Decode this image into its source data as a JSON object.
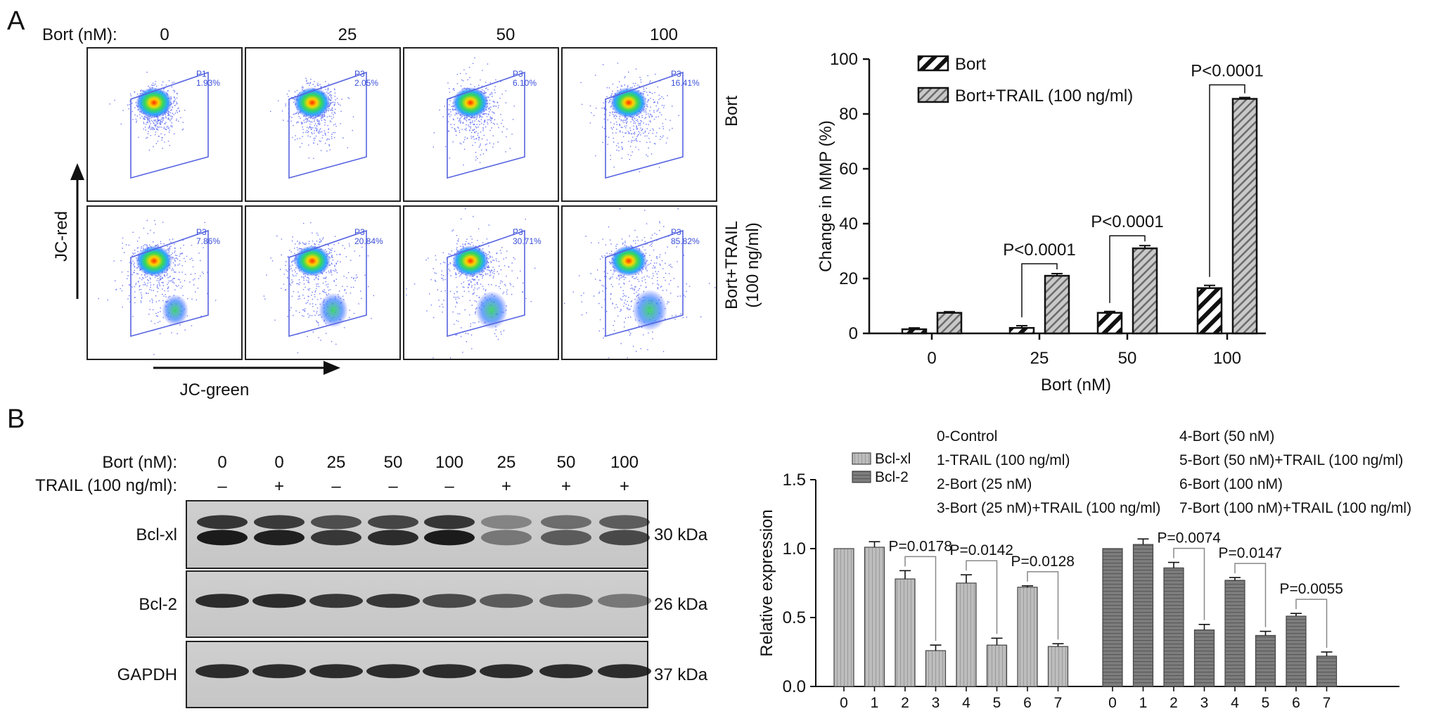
{
  "panel_a": {
    "letter": "A",
    "bort_header": "Bort (nM):",
    "doses": [
      "0",
      "25",
      "50",
      "100"
    ],
    "row_labels": [
      "Bort",
      "Bort+TRAIL",
      "(100 ng/ml)"
    ],
    "y_axis_label": "JC-red",
    "x_axis_label": "JC-green",
    "gates": [
      [
        "P1",
        "P3",
        "P3",
        "P3"
      ],
      [
        "P3",
        "P3",
        "P3",
        "P3"
      ]
    ],
    "gate_values": [
      [
        "1.93%",
        "2.05%",
        "6.10%",
        "16.41%"
      ],
      [
        "7.86%",
        "20.84%",
        "30.71%",
        "85.82%"
      ]
    ]
  },
  "panel_b": {
    "letter": "B",
    "lane_header_bort": "Bort (nM):",
    "lane_header_trail": "TRAIL (100 ng/ml):",
    "lanes_bort": [
      "0",
      "0",
      "25",
      "50",
      "100",
      "25",
      "50",
      "100"
    ],
    "lanes_trail": [
      "–",
      "+",
      "–",
      "–",
      "–",
      "+",
      "+",
      "+"
    ],
    "blots": [
      {
        "name": "Bcl-xl",
        "kda": "30 kDa"
      },
      {
        "name": "Bcl-2",
        "kda": "26 kDa"
      },
      {
        "name": "GAPDH",
        "kda": "37 kDa"
      }
    ],
    "groups_legend": [
      "0-Control",
      "1-TRAIL (100 ng/ml)",
      "2-Bort (25 nM)",
      "3-Bort (25 nM)+TRAIL (100 ng/ml)",
      "4-Bort (50 nM)",
      "5-Bort (50 nM)+TRAIL (100 ng/ml)",
      "6-Bort (100 nM)",
      "7-Bort (100 nM)+TRAIL (100 ng/ml)"
    ]
  },
  "chart_data": [
    {
      "type": "bar",
      "xlabel": "Bort (nM)",
      "ylabel": "Change in MMP (%)",
      "categories": [
        "0",
        "25",
        "50",
        "100"
      ],
      "ylim": [
        0,
        100
      ],
      "yticks": [
        0,
        20,
        40,
        60,
        80,
        100
      ],
      "legend_position": "top-left",
      "series": [
        {
          "name": "Bort",
          "values": [
            1.5,
            2,
            7.5,
            16.5
          ],
          "errors": [
            0.5,
            0.8,
            0.5,
            1.0
          ]
        },
        {
          "name": "Bort+TRAIL (100 ng/ml)",
          "values": [
            7.5,
            21,
            31,
            85.5
          ],
          "errors": [
            0.4,
            0.8,
            1.0,
            0.5
          ]
        }
      ],
      "annotations": [
        {
          "category": "25",
          "text": "P<0.0001"
        },
        {
          "category": "50",
          "text": "P<0.0001"
        },
        {
          "category": "100",
          "text": "P<0.0001"
        }
      ]
    },
    {
      "type": "bar",
      "ylabel": "Relative expression",
      "ylim": [
        0,
        1.5
      ],
      "yticks": [
        "0.0",
        "0.5",
        "1.0",
        "1.5"
      ],
      "legend_position": "top-left",
      "categories": [
        "0",
        "1",
        "2",
        "3",
        "4",
        "5",
        "6",
        "7"
      ],
      "series": [
        {
          "name": "Bcl-xl",
          "values": [
            1.0,
            1.01,
            0.78,
            0.26,
            0.75,
            0.3,
            0.72,
            0.29
          ],
          "errors": [
            0.0,
            0.04,
            0.06,
            0.04,
            0.06,
            0.05,
            0.01,
            0.02
          ]
        },
        {
          "name": "Bcl-2",
          "values": [
            1.0,
            1.03,
            0.86,
            0.41,
            0.77,
            0.37,
            0.51,
            0.22
          ],
          "errors": [
            0.0,
            0.04,
            0.04,
            0.04,
            0.02,
            0.03,
            0.02,
            0.03
          ]
        }
      ],
      "annotations": [
        {
          "series": "Bcl-xl",
          "from": "2",
          "to": "3",
          "text": "P=0.0178"
        },
        {
          "series": "Bcl-xl",
          "from": "4",
          "to": "5",
          "text": "P=0.0142"
        },
        {
          "series": "Bcl-xl",
          "from": "6",
          "to": "7",
          "text": "P=0.0128"
        },
        {
          "series": "Bcl-2",
          "from": "2",
          "to": "3",
          "text": "P=0.0074"
        },
        {
          "series": "Bcl-2",
          "from": "4",
          "to": "5",
          "text": "P=0.0147"
        },
        {
          "series": "Bcl-2",
          "from": "6",
          "to": "7",
          "text": "P=0.0055"
        }
      ]
    }
  ]
}
